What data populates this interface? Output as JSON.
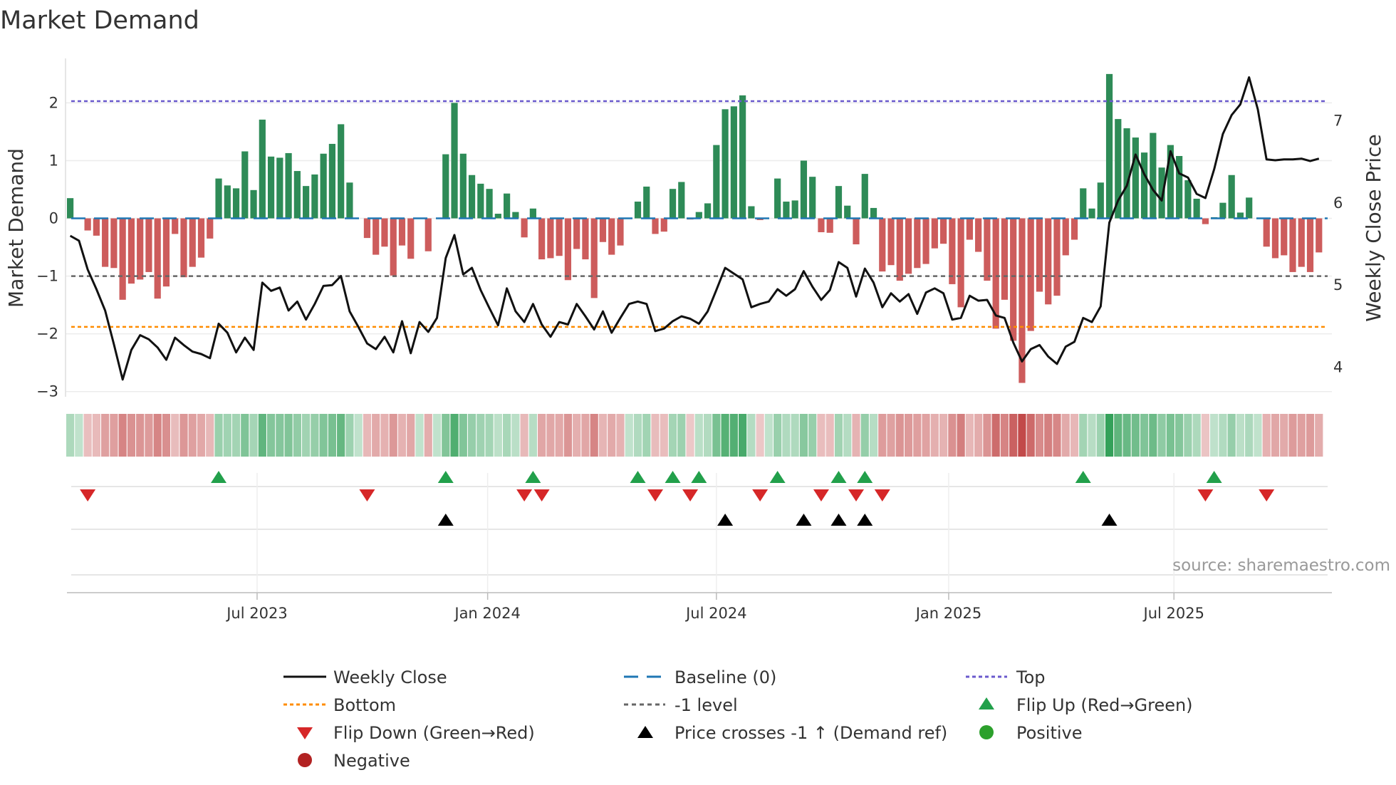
{
  "title": "Market Demand",
  "source": "source: sharemaestro.com",
  "colors": {
    "positive_bar": "#2e8b57",
    "negative_bar": "#cd5c5c",
    "baseline": "#1f77b4",
    "top": "#6a5acd",
    "bottom": "#ff8c00",
    "minus_one": "#666666",
    "flip_up": "#22a04b",
    "flip_down": "#d62728",
    "cross": "#000000",
    "positive_dot": "#2ca02c",
    "negative_dot": "#b22222",
    "line": "#111111"
  },
  "chart_data": {
    "type": "bar+line",
    "title": "Market Demand",
    "ylabel": "Market Demand",
    "y2label": "Weekly Close Price",
    "ylim": [
      -3.09,
      2.77
    ],
    "y2lim": [
      3.63,
      7.75
    ],
    "yticks": [
      2,
      1,
      0,
      -1,
      -2,
      -3
    ],
    "ytick_labels": [
      "2",
      "1",
      "0",
      "−1",
      "−2",
      "−3"
    ],
    "y2ticks": [
      7,
      6,
      5,
      4
    ],
    "y2tick_labels": [
      "7",
      "6",
      "5",
      "4"
    ],
    "xticks": [
      {
        "label": "Jul 2023",
        "week": 21.4
      },
      {
        "label": "Jan 2024",
        "week": 47.8
      },
      {
        "label": "Jul 2024",
        "week": 74.0
      },
      {
        "label": "Jan 2025",
        "week": 100.6
      },
      {
        "label": "Jul 2025",
        "week": 126.4
      }
    ],
    "reference_lines": {
      "top": 2.03,
      "bottom": -1.88,
      "minus_one": -1,
      "baseline": 0
    },
    "demand": [
      0.35,
      0,
      -0.21,
      -0.3,
      -0.84,
      -0.86,
      -1.41,
      -1.13,
      -1.06,
      -0.93,
      -1.39,
      -1.18,
      -0.27,
      -1.02,
      -0.84,
      -0.68,
      -0.35,
      0.69,
      0.57,
      0.52,
      1.16,
      0.49,
      1.71,
      1.07,
      1.05,
      1.13,
      0.82,
      0.56,
      0.76,
      1.12,
      1.29,
      1.63,
      0.62,
      0,
      -0.34,
      -0.63,
      -0.49,
      -0.99,
      -0.47,
      -0.7,
      0,
      -0.57,
      0,
      1.11,
      2.0,
      1.12,
      0.75,
      0.6,
      0.51,
      0.08,
      0.43,
      0.11,
      -0.33,
      0.17,
      -0.71,
      -0.69,
      -0.65,
      -1.07,
      -0.53,
      -0.71,
      -1.38,
      -0.41,
      -0.63,
      -0.47,
      0,
      0.29,
      0.55,
      -0.27,
      -0.23,
      0.51,
      0.63,
      -0.02,
      0.11,
      0.26,
      1.27,
      1.89,
      1.94,
      2.13,
      0.21,
      -0.03,
      0,
      0.69,
      0.29,
      0.31,
      1.0,
      0.72,
      -0.24,
      -0.25,
      0.56,
      0.22,
      -0.45,
      0.77,
      0.18,
      -0.92,
      -0.81,
      -1.08,
      -0.96,
      -0.86,
      -0.79,
      -0.52,
      -0.44,
      -1.14,
      -1.54,
      -0.37,
      -0.58,
      -1.08,
      -1.91,
      -1.41,
      -2.12,
      -2.85,
      -1.95,
      -1.27,
      -1.49,
      -1.34,
      -0.64,
      -0.37,
      0.52,
      0.17,
      0.62,
      2.5,
      1.72,
      1.56,
      1.4,
      1.14,
      1.48,
      0.88,
      1.27,
      1.08,
      0.66,
      0.34,
      -0.1,
      0.02,
      0.27,
      0.75,
      0.1,
      0.36,
      0,
      -0.49,
      -0.69,
      -0.64,
      -0.93,
      -0.84,
      -0.93,
      -0.59
    ],
    "weekly_close": [
      5.59,
      5.53,
      5.18,
      4.94,
      4.68,
      4.27,
      3.84,
      4.2,
      4.38,
      4.33,
      4.23,
      4.08,
      4.35,
      4.26,
      4.18,
      4.15,
      4.1,
      4.52,
      4.41,
      4.17,
      4.35,
      4.2,
      5.02,
      4.92,
      4.96,
      4.68,
      4.79,
      4.57,
      4.76,
      4.98,
      4.99,
      5.1,
      4.67,
      4.48,
      4.28,
      4.21,
      4.36,
      4.17,
      4.55,
      4.16,
      4.54,
      4.42,
      4.59,
      5.32,
      5.6,
      5.12,
      5.2,
      4.93,
      4.71,
      4.5,
      4.95,
      4.67,
      4.54,
      4.76,
      4.51,
      4.36,
      4.54,
      4.51,
      4.76,
      4.61,
      4.45,
      4.67,
      4.41,
      4.59,
      4.76,
      4.79,
      4.76,
      4.43,
      4.46,
      4.55,
      4.61,
      4.58,
      4.52,
      4.67,
      4.93,
      5.2,
      5.13,
      5.06,
      4.72,
      4.76,
      4.79,
      4.94,
      4.86,
      4.94,
      5.16,
      4.97,
      4.81,
      4.93,
      5.27,
      5.2,
      4.85,
      5.19,
      5.02,
      4.72,
      4.89,
      4.79,
      4.88,
      4.64,
      4.9,
      4.95,
      4.89,
      4.57,
      4.59,
      4.86,
      4.8,
      4.81,
      4.62,
      4.59,
      4.29,
      4.06,
      4.21,
      4.26,
      4.12,
      4.03,
      4.24,
      4.3,
      4.59,
      4.54,
      4.73,
      5.75,
      6.02,
      6.2,
      6.58,
      6.34,
      6.15,
      6.02,
      6.62,
      6.35,
      6.3,
      6.1,
      6.05,
      6.4,
      6.83,
      7.06,
      7.19,
      7.52,
      7.13,
      6.52,
      6.51,
      6.52,
      6.52,
      6.53,
      6.5,
      6.53
    ],
    "flip_up_weeks": [
      17,
      43,
      53,
      65,
      69,
      72,
      81,
      88,
      91,
      116,
      131
    ],
    "flip_down_weeks": [
      2,
      34,
      52,
      54,
      67,
      71,
      79,
      86,
      90,
      93,
      130,
      137
    ],
    "price_cross_weeks": [
      43,
      75,
      84,
      88,
      91,
      119
    ],
    "legend_position": "bottom-center"
  },
  "legend": [
    {
      "label": "Weekly Close",
      "icon": "solid-line"
    },
    {
      "label": "Baseline (0)",
      "icon": "dashed-line"
    },
    {
      "label": "Top",
      "icon": "dotted-line"
    },
    {
      "label": "Bottom",
      "icon": "dotted-line"
    },
    {
      "label": "-1 level",
      "icon": "dashed-line"
    },
    {
      "label": "Flip Up (Red→Green)",
      "icon": "triangle-up"
    },
    {
      "label": "Flip Down (Green→Red)",
      "icon": "triangle-down"
    },
    {
      "label": "Price crosses -1 ↑ (Demand ref)",
      "icon": "triangle-up"
    },
    {
      "label": "Positive",
      "icon": "circle"
    },
    {
      "label": "Negative",
      "icon": "circle"
    }
  ]
}
